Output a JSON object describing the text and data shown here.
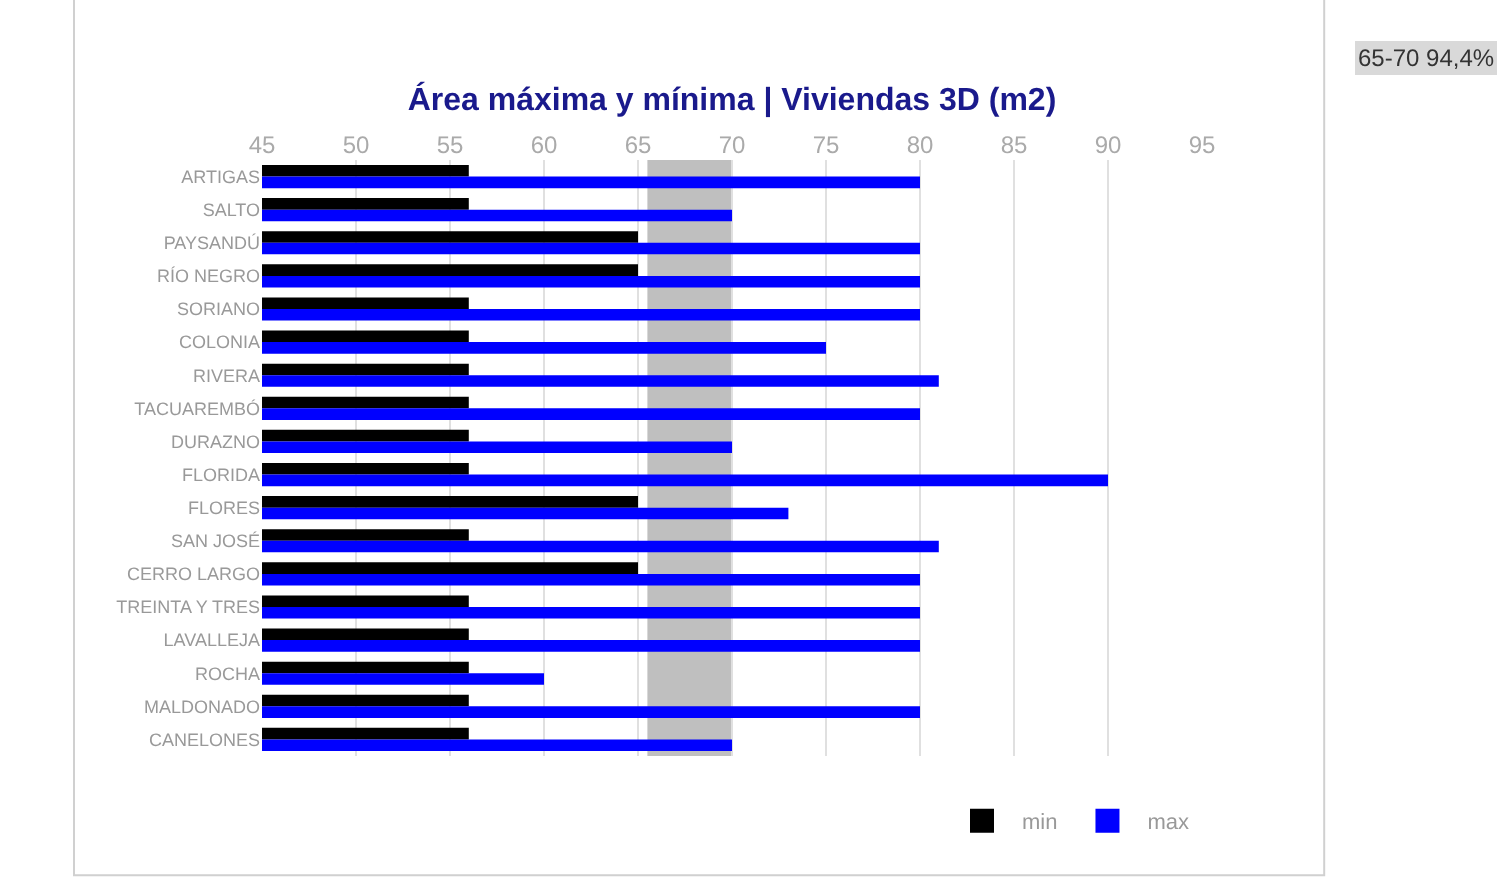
{
  "chart_data": {
    "type": "bar",
    "orientation": "horizontal",
    "title": "Área máxima y mínima | Viviendas 3D (m2)",
    "categories": [
      "ARTIGAS",
      "SALTO",
      "PAYSANDÚ",
      "RÍO NEGRO",
      "SORIANO",
      "COLONIA",
      "RIVERA",
      "TACUAREMBÓ",
      "DURAZNO",
      "FLORIDA",
      "FLORES",
      "SAN JOSÉ",
      "CERRO LARGO",
      "TREINTA Y TRES",
      "LAVALLEJA",
      "ROCHA",
      "MALDONADO",
      "CANELONES"
    ],
    "series": [
      {
        "name": "min",
        "color": "#000000",
        "values": [
          56,
          56,
          65,
          65,
          56,
          56,
          56,
          56,
          56,
          56,
          65,
          56,
          65,
          56,
          56,
          56,
          56,
          56
        ]
      },
      {
        "name": "max",
        "color": "#0000ff",
        "values": [
          80,
          70,
          80,
          80,
          80,
          75,
          81,
          80,
          70,
          90,
          73,
          81,
          80,
          80,
          80,
          60,
          80,
          70
        ]
      }
    ],
    "xlim": [
      45,
      95
    ],
    "xticks": [
      45,
      50,
      55,
      60,
      65,
      70,
      75,
      80,
      85,
      90,
      95
    ],
    "grid": "x",
    "legend": "bottom right",
    "bands": [
      {
        "axis": "x",
        "from": 65.5,
        "to": 70,
        "color": "#bfbfbf"
      }
    ],
    "annotations": [
      "65-70 94,4%"
    ]
  }
}
